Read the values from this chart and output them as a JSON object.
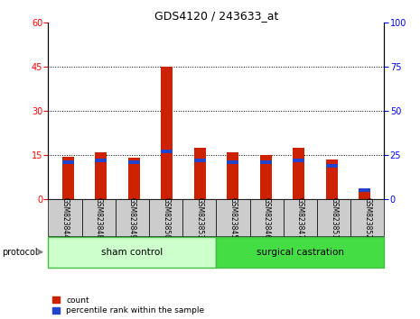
{
  "title": "GDS4120 / 243633_at",
  "samples": [
    "GSM823844",
    "GSM823848",
    "GSM823849",
    "GSM823850",
    "GSM823853",
    "GSM823845",
    "GSM823846",
    "GSM823847",
    "GSM823851",
    "GSM823852"
  ],
  "count_values": [
    14.5,
    16.0,
    14.0,
    45.0,
    17.5,
    16.0,
    15.0,
    17.5,
    13.5,
    3.0
  ],
  "percentile_values": [
    21,
    22,
    21,
    27,
    22,
    21,
    21,
    22,
    19,
    5
  ],
  "groups": [
    {
      "label": "sham control",
      "start": 0,
      "end": 5,
      "color": "#ccffcc",
      "edge": "#44bb44"
    },
    {
      "label": "surgical castration",
      "start": 5,
      "end": 10,
      "color": "#44dd44",
      "edge": "#44bb44"
    }
  ],
  "protocol_label": "protocol",
  "legend_count_label": "count",
  "legend_pct_label": "percentile rank within the sample",
  "left_ylim": [
    0,
    60
  ],
  "right_ylim": [
    0,
    100
  ],
  "left_yticks": [
    0,
    15,
    30,
    45,
    60
  ],
  "right_yticks": [
    0,
    25,
    50,
    75,
    100
  ],
  "bar_color_red": "#cc2200",
  "bar_color_blue": "#2244cc",
  "tick_label_bg": "#cccccc",
  "bar_width": 0.35
}
